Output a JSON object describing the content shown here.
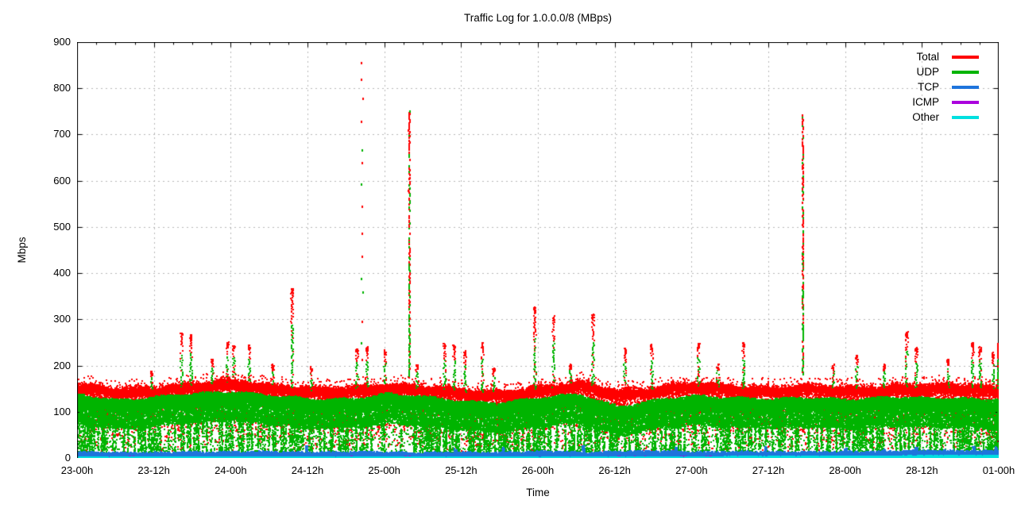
{
  "chart_data": {
    "type": "scatter",
    "title": "Traffic Log for 1.0.0.0/8 (MBps)",
    "xlabel": "Time",
    "ylabel": "Mbps",
    "ylim": [
      0,
      900
    ],
    "ytick_values": [
      0,
      100,
      200,
      300,
      400,
      500,
      600,
      700,
      800,
      900
    ],
    "x_total_hours": 144,
    "xtick_hours": [
      0,
      12,
      24,
      36,
      48,
      60,
      72,
      84,
      96,
      108,
      120,
      132,
      144
    ],
    "xtick_labels": [
      "23-00h",
      "23-12h",
      "24-00h",
      "24-12h",
      "25-00h",
      "25-12h",
      "26-00h",
      "26-12h",
      "27-00h",
      "27-12h",
      "28-00h",
      "28-12h",
      "01-00h"
    ],
    "minor_tick_hours": 3,
    "grid": true,
    "grid_color": "#b8b8b8",
    "legend_position": "top-right",
    "mean_t_step_hours": 6,
    "series": [
      {
        "name": "Total",
        "color": "#ff0000",
        "mean": [
          150,
          144,
          147,
          153,
          162,
          152,
          142,
          146,
          155,
          147,
          140,
          139,
          146,
          157,
          141,
          146,
          154,
          150,
          146,
          148,
          147,
          150,
          149,
          151,
          148
        ]
      },
      {
        "name": "UDP",
        "color": "#00b400",
        "mean": [
          124,
          116,
          120,
          127,
          134,
          124,
          114,
          118,
          128,
          119,
          112,
          110,
          118,
          127,
          101,
          113,
          123,
          121,
          115,
          118,
          117,
          120,
          117,
          119,
          117
        ]
      },
      {
        "name": "TCP",
        "color": "#1e74dc",
        "mean": [
          9,
          8,
          8,
          9,
          10,
          9,
          9,
          9,
          9,
          8,
          8,
          9,
          10,
          9,
          10,
          11,
          10,
          9,
          10,
          9,
          10,
          11,
          12,
          12,
          12
        ]
      },
      {
        "name": "ICMP",
        "color": "#aa00dd",
        "mean": [
          1.5,
          1.5,
          1.5,
          1.5,
          1.5,
          1.5,
          1.5,
          1.5,
          1.5,
          1.5,
          1.5,
          1.5,
          1.5,
          1.5,
          1.5,
          1.5,
          1.5,
          1.5,
          1.5,
          1.5,
          1.5,
          1.5,
          1.5,
          1.5,
          1.5
        ]
      },
      {
        "name": "Other",
        "color": "#00e0e0",
        "mean": [
          2,
          2,
          2,
          2,
          2,
          2,
          2,
          2,
          2,
          2,
          2,
          2,
          2,
          2,
          2,
          2,
          2,
          3,
          3,
          3,
          4,
          4,
          5,
          5,
          5
        ]
      }
    ],
    "spikes": [
      {
        "h": 11.5,
        "v": 190,
        "style": "cluster"
      },
      {
        "h": 16.2,
        "v": 272,
        "style": "cluster"
      },
      {
        "h": 17.7,
        "v": 268,
        "style": "cluster"
      },
      {
        "h": 21.0,
        "v": 215,
        "style": "cluster"
      },
      {
        "h": 23.4,
        "v": 252,
        "style": "cluster"
      },
      {
        "h": 24.4,
        "v": 246,
        "style": "cluster"
      },
      {
        "h": 26.8,
        "v": 246,
        "style": "cluster"
      },
      {
        "h": 30.5,
        "v": 205,
        "style": "cluster"
      },
      {
        "h": 33.5,
        "v": 368,
        "style": "cluster"
      },
      {
        "h": 36.5,
        "v": 200,
        "style": "cluster"
      },
      {
        "h": 43.6,
        "v": 238,
        "style": "cluster"
      },
      {
        "h": 44.4,
        "v": 860,
        "style": "sparse"
      },
      {
        "h": 45.2,
        "v": 242,
        "style": "cluster"
      },
      {
        "h": 48.0,
        "v": 236,
        "style": "cluster"
      },
      {
        "h": 51.8,
        "v": 757,
        "style": "dense"
      },
      {
        "h": 53.0,
        "v": 205,
        "style": "cluster"
      },
      {
        "h": 57.3,
        "v": 250,
        "style": "cluster"
      },
      {
        "h": 58.8,
        "v": 248,
        "style": "cluster"
      },
      {
        "h": 60.5,
        "v": 235,
        "style": "cluster"
      },
      {
        "h": 63.2,
        "v": 252,
        "style": "cluster"
      },
      {
        "h": 65.0,
        "v": 196,
        "style": "cluster"
      },
      {
        "h": 71.4,
        "v": 328,
        "style": "cluster"
      },
      {
        "h": 74.3,
        "v": 310,
        "style": "cluster"
      },
      {
        "h": 77.0,
        "v": 205,
        "style": "cluster"
      },
      {
        "h": 80.5,
        "v": 312,
        "style": "cluster"
      },
      {
        "h": 85.5,
        "v": 240,
        "style": "cluster"
      },
      {
        "h": 89.7,
        "v": 247,
        "style": "cluster"
      },
      {
        "h": 97.0,
        "v": 250,
        "style": "cluster"
      },
      {
        "h": 100.0,
        "v": 205,
        "style": "cluster"
      },
      {
        "h": 104.0,
        "v": 252,
        "style": "cluster"
      },
      {
        "h": 113.3,
        "v": 745,
        "style": "dense"
      },
      {
        "h": 118.0,
        "v": 205,
        "style": "cluster"
      },
      {
        "h": 121.7,
        "v": 225,
        "style": "cluster"
      },
      {
        "h": 126.0,
        "v": 205,
        "style": "cluster"
      },
      {
        "h": 129.5,
        "v": 275,
        "style": "cluster"
      },
      {
        "h": 131.0,
        "v": 240,
        "style": "cluster"
      },
      {
        "h": 136.0,
        "v": 215,
        "style": "cluster"
      },
      {
        "h": 139.8,
        "v": 252,
        "style": "cluster"
      },
      {
        "h": 141.0,
        "v": 242,
        "style": "cluster"
      },
      {
        "h": 143.0,
        "v": 230,
        "style": "cluster"
      },
      {
        "h": 143.9,
        "v": 250,
        "style": "cluster"
      }
    ],
    "tcp_bumps": [
      {
        "h": 35.8,
        "v": 30
      },
      {
        "h": 59.0,
        "v": 22
      },
      {
        "h": 66.5,
        "v": 24
      },
      {
        "h": 79.0,
        "v": 28
      },
      {
        "h": 93.5,
        "v": 24
      },
      {
        "h": 107.5,
        "v": 26
      },
      {
        "h": 120.0,
        "v": 22
      },
      {
        "h": 126.0,
        "v": 20
      },
      {
        "h": 131.0,
        "v": 24
      },
      {
        "h": 140.0,
        "v": 26
      },
      {
        "h": 143.5,
        "v": 25
      }
    ]
  }
}
